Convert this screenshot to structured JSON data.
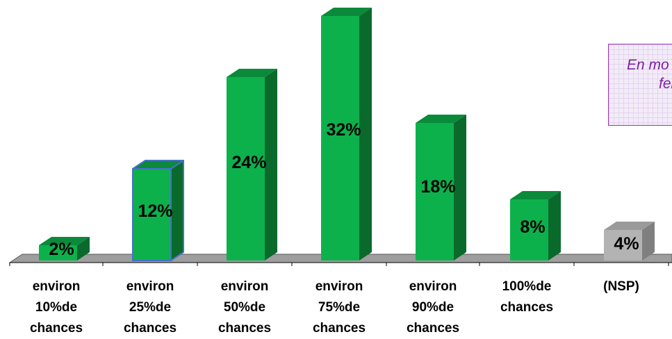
{
  "chart_data": {
    "type": "bar",
    "categories": [
      "environ\n10%de\nchances",
      "environ\n25%de\nchances",
      "environ\n50%de\nchances",
      "environ\n75%de\nchances",
      "environ\n90%de\nchances",
      "100%de\nchances",
      "(NSP)"
    ],
    "values": [
      2,
      12,
      24,
      32,
      18,
      8,
      4
    ],
    "value_labels": [
      "2%",
      "12%",
      "24%",
      "32%",
      "18%",
      "8%",
      "4%"
    ],
    "unit": "%",
    "highlighted_index": 1,
    "colors": {
      "bar": "#0db14b",
      "bar_side": "#0a6a2c",
      "bar_top": "#0a8a3a",
      "nsp": "#b3b3b3",
      "nsp_side": "#7f7f7f",
      "nsp_top": "#9a9a9a",
      "floor": "#9e9e9e",
      "highlight_border": "#4472c4"
    }
  },
  "note": {
    "line1": "En mo",
    "line2": "fem"
  }
}
